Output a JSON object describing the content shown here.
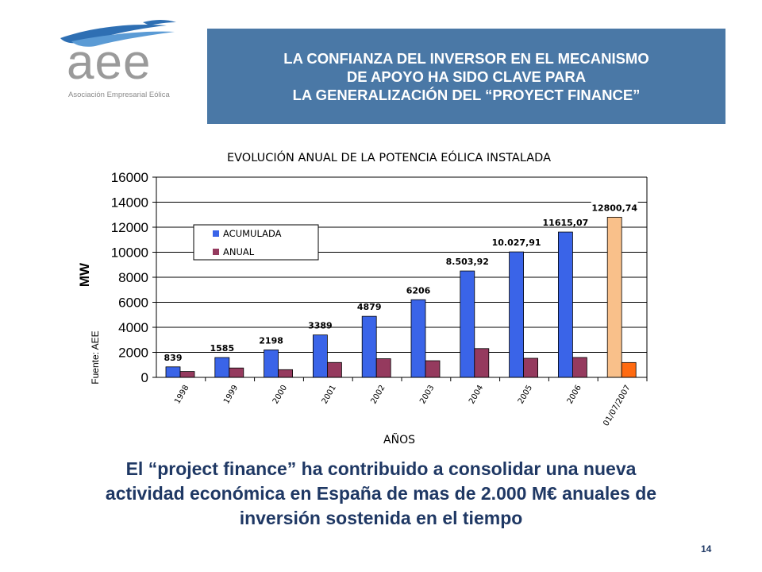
{
  "logo": {
    "word": "aee",
    "subtitle": "Asociación Empresarial Eólica"
  },
  "header": {
    "lines": [
      "LA CONFIANZA DEL INVERSOR EN EL MECANISMO",
      "DE APOYO HA SIDO CLAVE PARA",
      "LA GENERALIZACIÓN DEL “PROYECT FINANCE”"
    ]
  },
  "chart_data": {
    "type": "bar",
    "title": "EVOLUCIÓN ANUAL DE LA POTENCIA EÓLICA INSTALADA",
    "xlabel": "AÑOS",
    "ylabel": "MW",
    "source": "Fuente: AEE",
    "ylim": [
      0,
      16000
    ],
    "yticks": [
      0,
      2000,
      4000,
      6000,
      8000,
      10000,
      12000,
      14000,
      16000
    ],
    "grid": true,
    "legend_position": "top-left",
    "categories": [
      "1998",
      "1999",
      "2000",
      "2001",
      "2002",
      "2003",
      "2004",
      "2005",
      "2006",
      "01/07/2007"
    ],
    "series": [
      {
        "name": "ACUMULADA",
        "color": "#3a64e8",
        "highlight_color": "#f9c08a",
        "values": [
          839,
          1585,
          2198,
          3389,
          4879,
          6206,
          8503.92,
          10027.91,
          11615.07,
          12800.74
        ],
        "labels": [
          "839",
          "1585",
          "2198",
          "3389",
          "4879",
          "6206",
          "8.503,92",
          "10.027,91",
          "11615,07",
          "12800,74"
        ]
      },
      {
        "name": "ANUAL",
        "color": "#953a5e",
        "highlight_color": "#ff6a10",
        "values": [
          470,
          750,
          615,
          1190,
          1490,
          1330,
          2300,
          1525,
          1590,
          1185
        ]
      }
    ]
  },
  "bottom_text": {
    "lines": [
      "El “project finance”  ha contribuido a consolidar una nueva",
      "actividad económica en España de mas de 2.000 M€ anuales de",
      "inversión sostenida en el tiempo"
    ]
  },
  "page_number": "14"
}
